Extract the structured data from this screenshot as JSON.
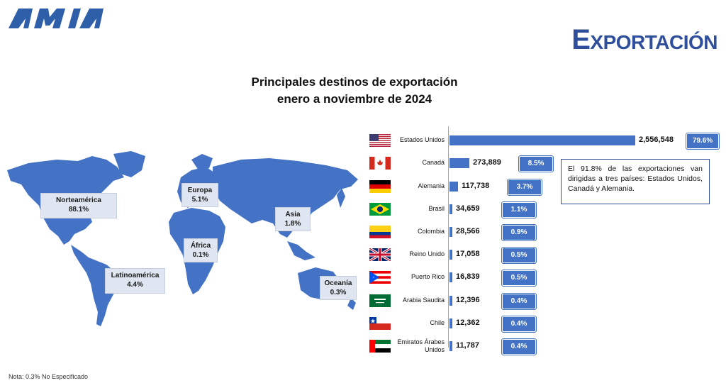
{
  "header": {
    "logo_text": "AMIA",
    "page_title": "Exportación"
  },
  "chart_data": {
    "type": "bar",
    "title": "Principales destinos de exportación",
    "subtitle": "enero a noviembre de 2024",
    "categories": [
      "Estados Unidos",
      "Canadá",
      "Alemania",
      "Brasil",
      "Colombia",
      "Reino Unido",
      "Puerto Rico",
      "Arabia Saudita",
      "Chile",
      "Emiratos Árabes Unidos"
    ],
    "values": [
      2556548,
      273889,
      117738,
      34659,
      28566,
      17058,
      16839,
      12396,
      12362,
      11787
    ],
    "value_labels": [
      "2,556,548",
      "273,889",
      "117,738",
      "34,659",
      "28,566",
      "17,058",
      "16,839",
      "12,396",
      "12,362",
      "11,787"
    ],
    "percent_labels": [
      "79.6%",
      "8.5%",
      "3.7%",
      "1.1%",
      "0.9%",
      "0.5%",
      "0.5%",
      "0.4%",
      "0.4%",
      "0.4%"
    ],
    "bar_color": "#4472c4",
    "orientation": "horizontal"
  },
  "regions": [
    {
      "name": "Norteamérica",
      "pct": "88.1%"
    },
    {
      "name": "Europa",
      "pct": "5.1%"
    },
    {
      "name": "Asia",
      "pct": "1.8%"
    },
    {
      "name": "África",
      "pct": "0.1%"
    },
    {
      "name": "Latinoamérica",
      "pct": "4.4%"
    },
    {
      "name": "Oceanía",
      "pct": "0.3%"
    }
  ],
  "note": "El 91.8% de las exportaciones van dirigidas a tres países: Estados Unidos, Canadá y Alemania.",
  "footnote": "Nota: 0.3% No Especificado",
  "colors": {
    "accent": "#2f4f9c",
    "map": "#4472c4",
    "region_box": "#dfe6f1"
  }
}
